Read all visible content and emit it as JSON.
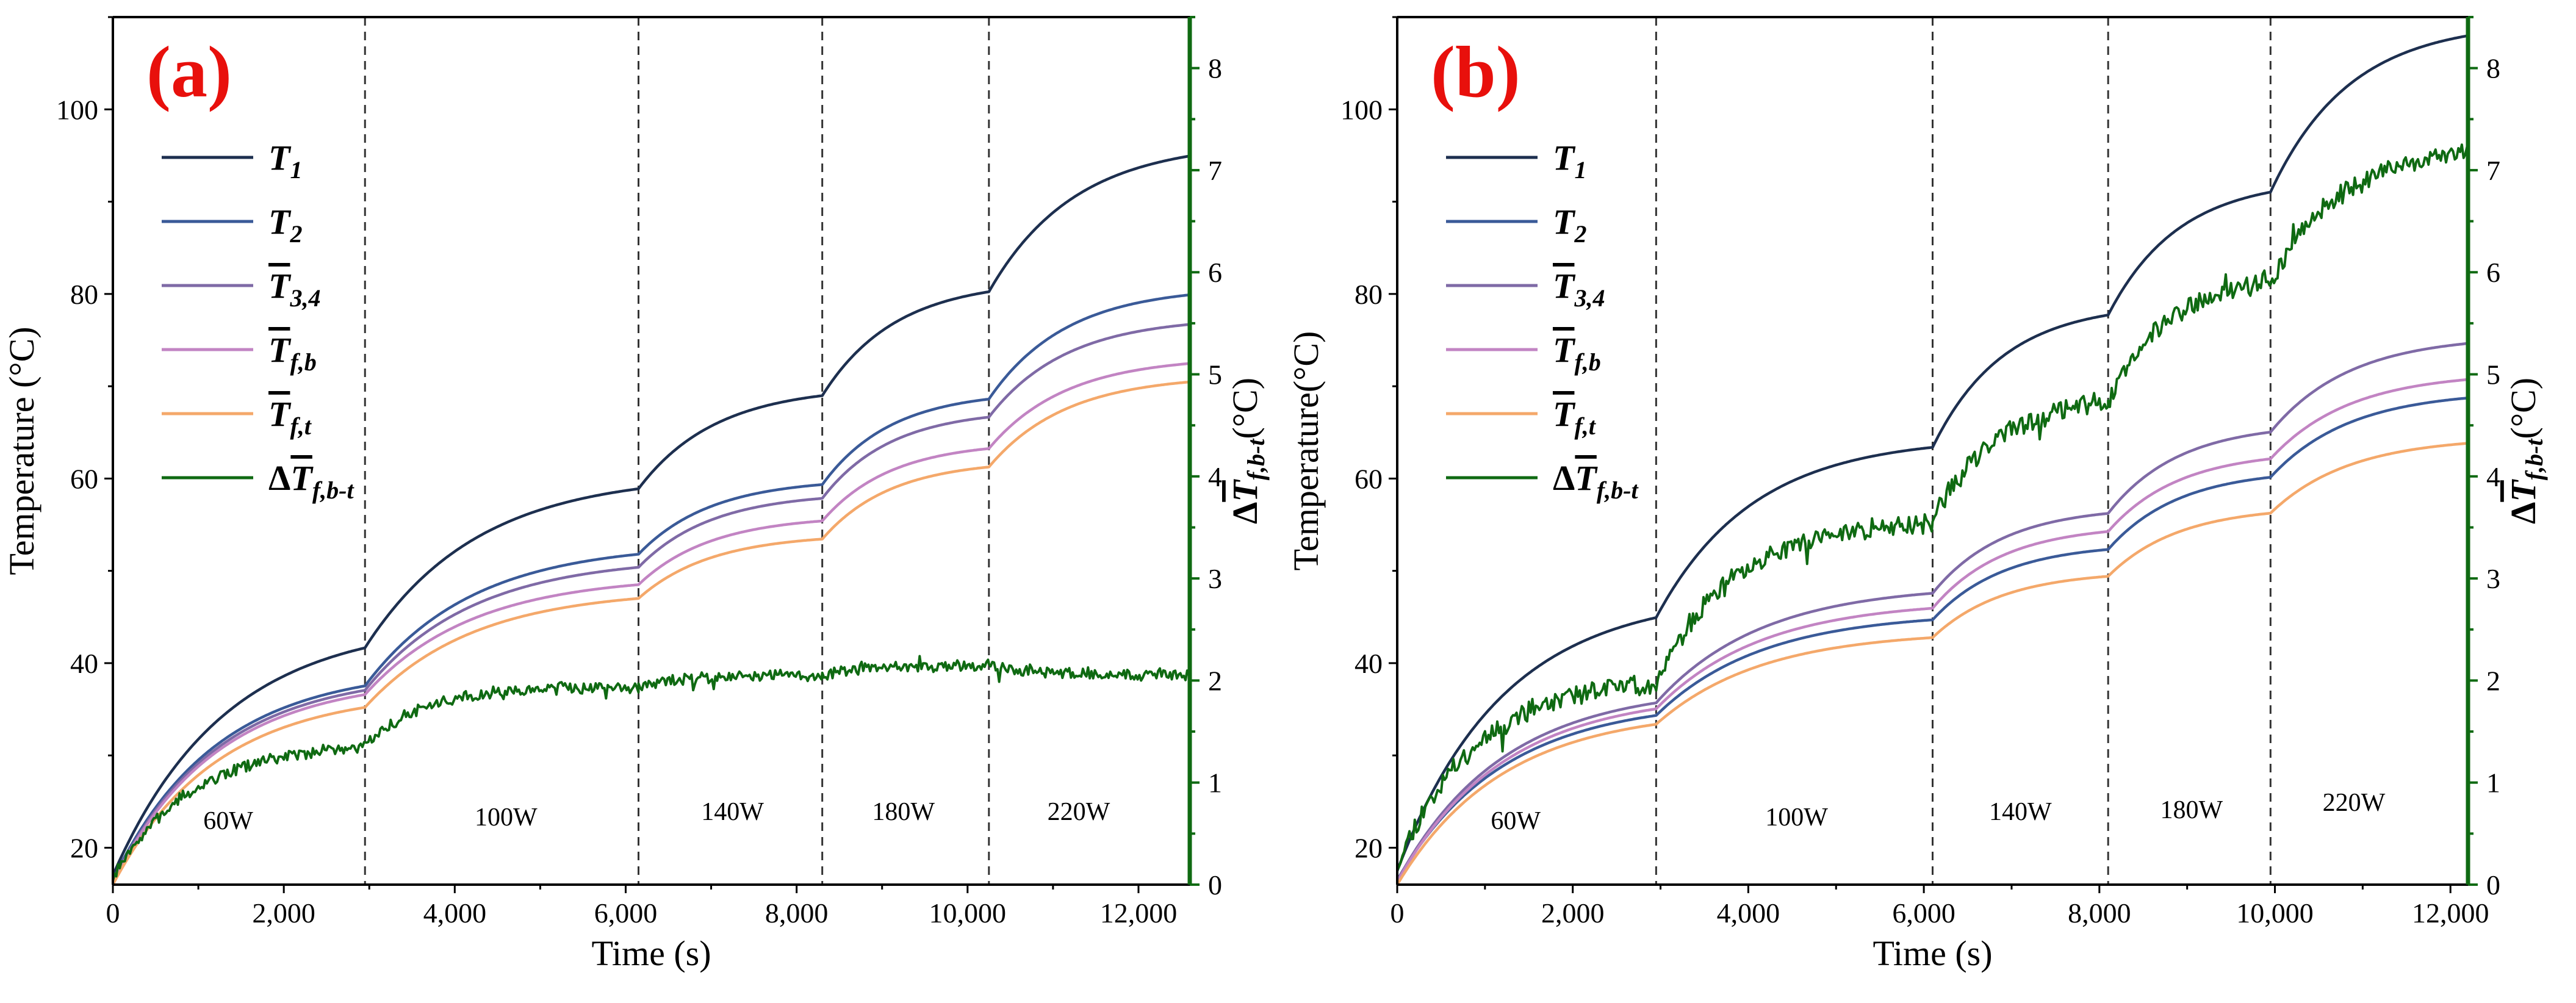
{
  "figure": {
    "panels": [
      "(a)",
      "(b)"
    ]
  },
  "colors": {
    "T1": "#1d2f4f",
    "T2": "#3a5a98",
    "T34": "#7f6aa6",
    "Tfb": "#c284c3",
    "Tft": "#f4a86a",
    "dT": "#0f6a12",
    "right_axis": "#0f6a12",
    "panel_label": "#e8100c"
  },
  "legend": [
    {
      "key": "T1",
      "main": "T",
      "sub": "1",
      "bar": false,
      "delta": false
    },
    {
      "key": "T2",
      "main": "T",
      "sub": "2",
      "bar": false,
      "delta": false
    },
    {
      "key": "T34",
      "main": "T",
      "sub": "3,4",
      "bar": true,
      "delta": false
    },
    {
      "key": "Tfb",
      "main": "T",
      "sub": "f,b",
      "bar": true,
      "delta": false
    },
    {
      "key": "Tft",
      "main": "T",
      "sub": "f,t",
      "bar": true,
      "delta": false
    },
    {
      "key": "dT",
      "main": "T",
      "sub": "f,b-t",
      "bar": true,
      "delta": true
    }
  ],
  "chart_data": [
    {
      "type": "line",
      "panel_label": "(a)",
      "xlabel": "Time (s)",
      "ylabel": "Temperature (°C)",
      "y2label_main": "T",
      "y2label_sub": "f,b-t",
      "y2label_unit": "(°C)",
      "xlim": [
        0,
        12600
      ],
      "ylim": [
        16,
        110
      ],
      "y2lim": [
        0,
        8.5
      ],
      "xticks": [
        0,
        2000,
        4000,
        6000,
        8000,
        10000,
        12000
      ],
      "xtick_labels": [
        "0",
        "2,000",
        "4,000",
        "6,000",
        "8,000",
        "10,000",
        "12,000"
      ],
      "yticks": [
        20,
        40,
        60,
        80,
        100
      ],
      "y2ticks": [
        0,
        1,
        2,
        3,
        4,
        5,
        6,
        7,
        8
      ],
      "dividers": [
        2950,
        6150,
        8300,
        10250
      ],
      "regions": [
        {
          "label": "60W",
          "x": 1350,
          "y": 22
        },
        {
          "label": "100W",
          "x": 4600,
          "y": 22.4
        },
        {
          "label": "140W",
          "x": 7250,
          "y": 23
        },
        {
          "label": "180W",
          "x": 9250,
          "y": 23
        },
        {
          "label": "220W",
          "x": 11300,
          "y": 23
        }
      ],
      "step_times": [
        0,
        2950,
        6150,
        8300,
        10250,
        12600
      ],
      "series": [
        {
          "key": "T1",
          "name": "T1",
          "axis": "left",
          "start": 17,
          "levels": [
            44.5,
            60.5,
            70,
            81.5,
            96.5
          ],
          "taus": [
            1300,
            1300,
            900,
            850,
            1000
          ]
        },
        {
          "key": "T2",
          "name": "T2",
          "axis": "left",
          "start": 16.5,
          "levels": [
            39.5,
            53,
            60,
            69.5,
            80.8
          ],
          "taus": [
            1200,
            1250,
            850,
            800,
            900
          ]
        },
        {
          "key": "T34",
          "name": "T3,4 (mean)",
          "axis": "left",
          "start": 16.3,
          "levels": [
            39,
            51.5,
            58.5,
            67.5,
            77.5
          ],
          "taus": [
            1200,
            1250,
            850,
            800,
            900
          ]
        },
        {
          "key": "Tfb",
          "name": "Tf,b (mean)",
          "axis": "left",
          "start": 16.2,
          "levels": [
            38.5,
            49.5,
            56,
            64,
            73.2
          ],
          "taus": [
            1200,
            1250,
            850,
            800,
            900
          ]
        },
        {
          "key": "Tft",
          "name": "Tf,t (mean)",
          "axis": "left",
          "start": 16,
          "levels": [
            37,
            48,
            54,
            62,
            71.2
          ],
          "taus": [
            1200,
            1250,
            850,
            800,
            900
          ]
        },
        {
          "key": "dT",
          "name": "ΔTf,b-t (mean)",
          "axis": "right",
          "start": 0.05,
          "levels": [
            1.4,
            1.95,
            2.05,
            2.15,
            2.05
          ],
          "taus": [
            900,
            700,
            500,
            500,
            600
          ],
          "noise": 0.05,
          "seed": 7
        }
      ]
    },
    {
      "type": "line",
      "panel_label": "(b)",
      "xlabel": "Time (s)",
      "ylabel": "Temperature(°C)",
      "y2label_main": "T",
      "y2label_sub": "f,b-t",
      "y2label_unit": "(°C)",
      "xlim": [
        0,
        12200
      ],
      "ylim": [
        16,
        110
      ],
      "y2lim": [
        0,
        8.5
      ],
      "xticks": [
        0,
        2000,
        4000,
        6000,
        8000,
        10000,
        12000
      ],
      "xtick_labels": [
        "0",
        "2,000",
        "4,000",
        "6,000",
        "8,000",
        "10,000",
        "12,000"
      ],
      "yticks": [
        20,
        40,
        60,
        80,
        100
      ],
      "y2ticks": [
        0,
        1,
        2,
        3,
        4,
        5,
        6,
        7,
        8
      ],
      "dividers": [
        2950,
        6100,
        8100,
        9950
      ],
      "regions": [
        {
          "label": "60W",
          "x": 1350,
          "y": 22
        },
        {
          "label": "100W",
          "x": 4550,
          "y": 22.4
        },
        {
          "label": "140W",
          "x": 7100,
          "y": 23
        },
        {
          "label": "180W",
          "x": 9050,
          "y": 23.2
        },
        {
          "label": "220W",
          "x": 10900,
          "y": 24
        }
      ],
      "step_times": [
        0,
        2950,
        6100,
        8100,
        9950,
        12200
      ],
      "series": [
        {
          "key": "T1",
          "name": "T1",
          "axis": "left",
          "start": 17.5,
          "levels": [
            47.5,
            64.5,
            79,
            92.5,
            109.5
          ],
          "taus": [
            1200,
            1100,
            800,
            800,
            900
          ]
        },
        {
          "key": "T2",
          "name": "T2",
          "axis": "left",
          "start": 16.5,
          "levels": [
            36,
            45.5,
            53,
            61,
            69.5
          ],
          "taus": [
            1200,
            1200,
            800,
            800,
            900
          ]
        },
        {
          "key": "T34",
          "name": "T3,4 (mean)",
          "axis": "left",
          "start": 16.4,
          "levels": [
            37.5,
            48.5,
            57,
            66,
            75.5
          ],
          "taus": [
            1200,
            1200,
            800,
            800,
            900
          ]
        },
        {
          "key": "Tfb",
          "name": "Tf,b (mean)",
          "axis": "left",
          "start": 16.3,
          "levels": [
            36.8,
            46.8,
            55,
            63,
            71.5
          ],
          "taus": [
            1200,
            1200,
            800,
            800,
            900
          ]
        },
        {
          "key": "Tft",
          "name": "Tf,t (mean)",
          "axis": "left",
          "start": 16,
          "levels": [
            35,
            43.5,
            50,
            57,
            64.5
          ],
          "taus": [
            1200,
            1200,
            800,
            800,
            900
          ]
        },
        {
          "key": "dT",
          "name": "ΔTf,b-t (mean)",
          "axis": "right",
          "start": 0.2,
          "levels": [
            2.05,
            3.6,
            4.8,
            6.0,
            7.25
          ],
          "taus": [
            900,
            900,
            700,
            700,
            800
          ],
          "noise": 0.09,
          "seed": 11
        }
      ]
    }
  ]
}
